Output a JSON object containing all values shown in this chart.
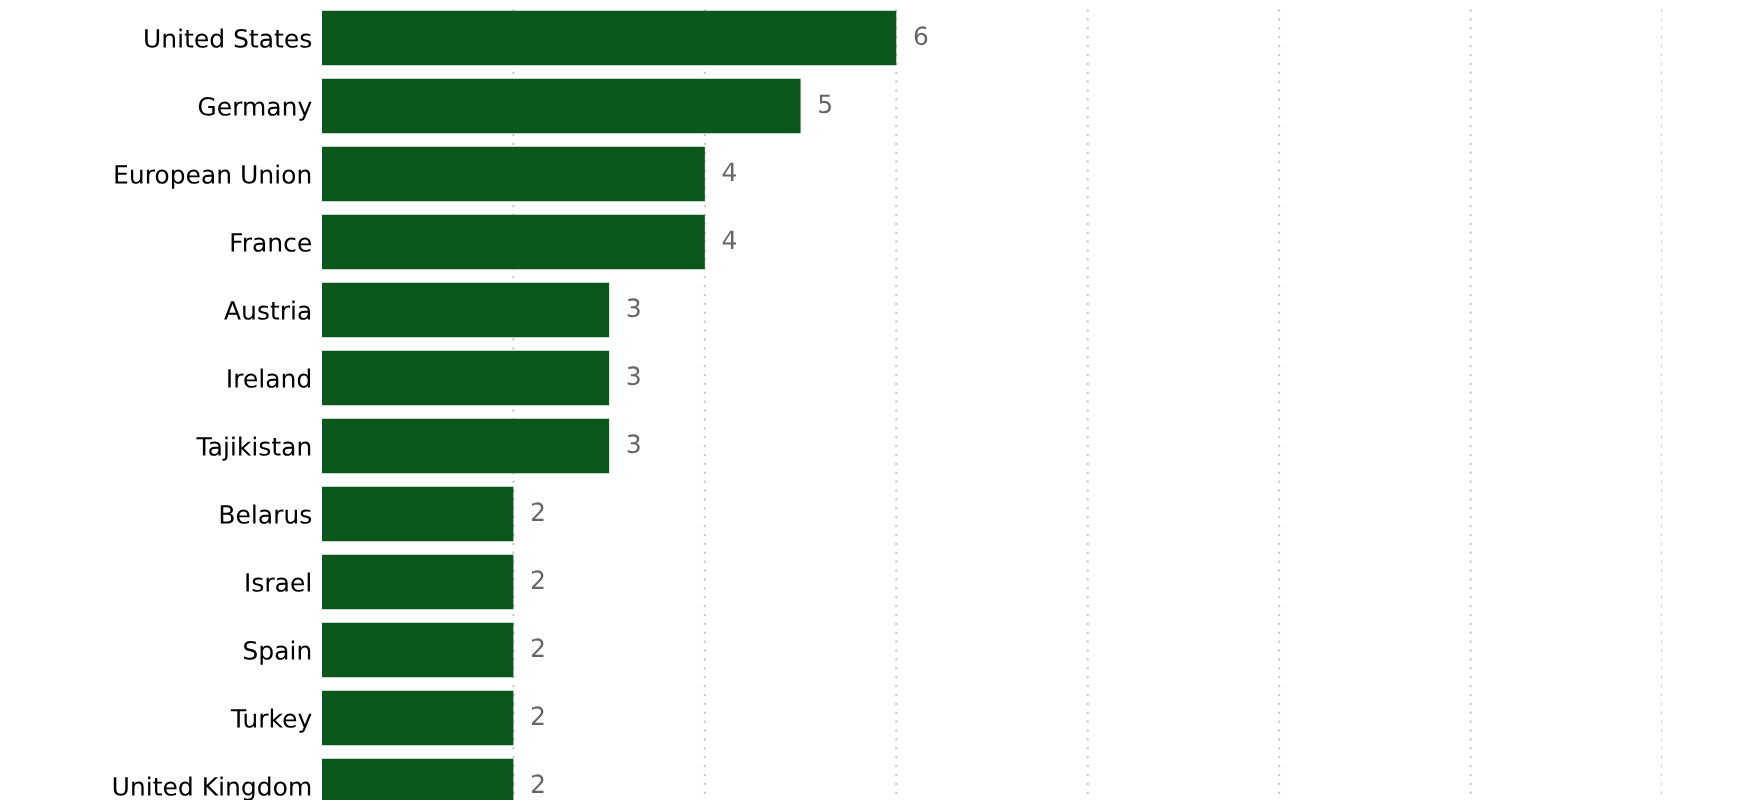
{
  "chart_data": {
    "type": "bar",
    "orientation": "horizontal",
    "categories": [
      "United States",
      "Germany",
      "European Union",
      "France",
      "Austria",
      "Ireland",
      "Tajikistan",
      "Belarus",
      "Israel",
      "Spain",
      "Turkey",
      "United Kingdom"
    ],
    "values": [
      6,
      5,
      4,
      4,
      3,
      3,
      3,
      2,
      2,
      2,
      2,
      2
    ],
    "color": "#0b571e",
    "data_labels": true,
    "xlim": [
      0,
      14
    ],
    "xticks": [
      2,
      4,
      6,
      8,
      10,
      12,
      14
    ],
    "tick_labels": "y",
    "grid": "x",
    "legend": false
  }
}
